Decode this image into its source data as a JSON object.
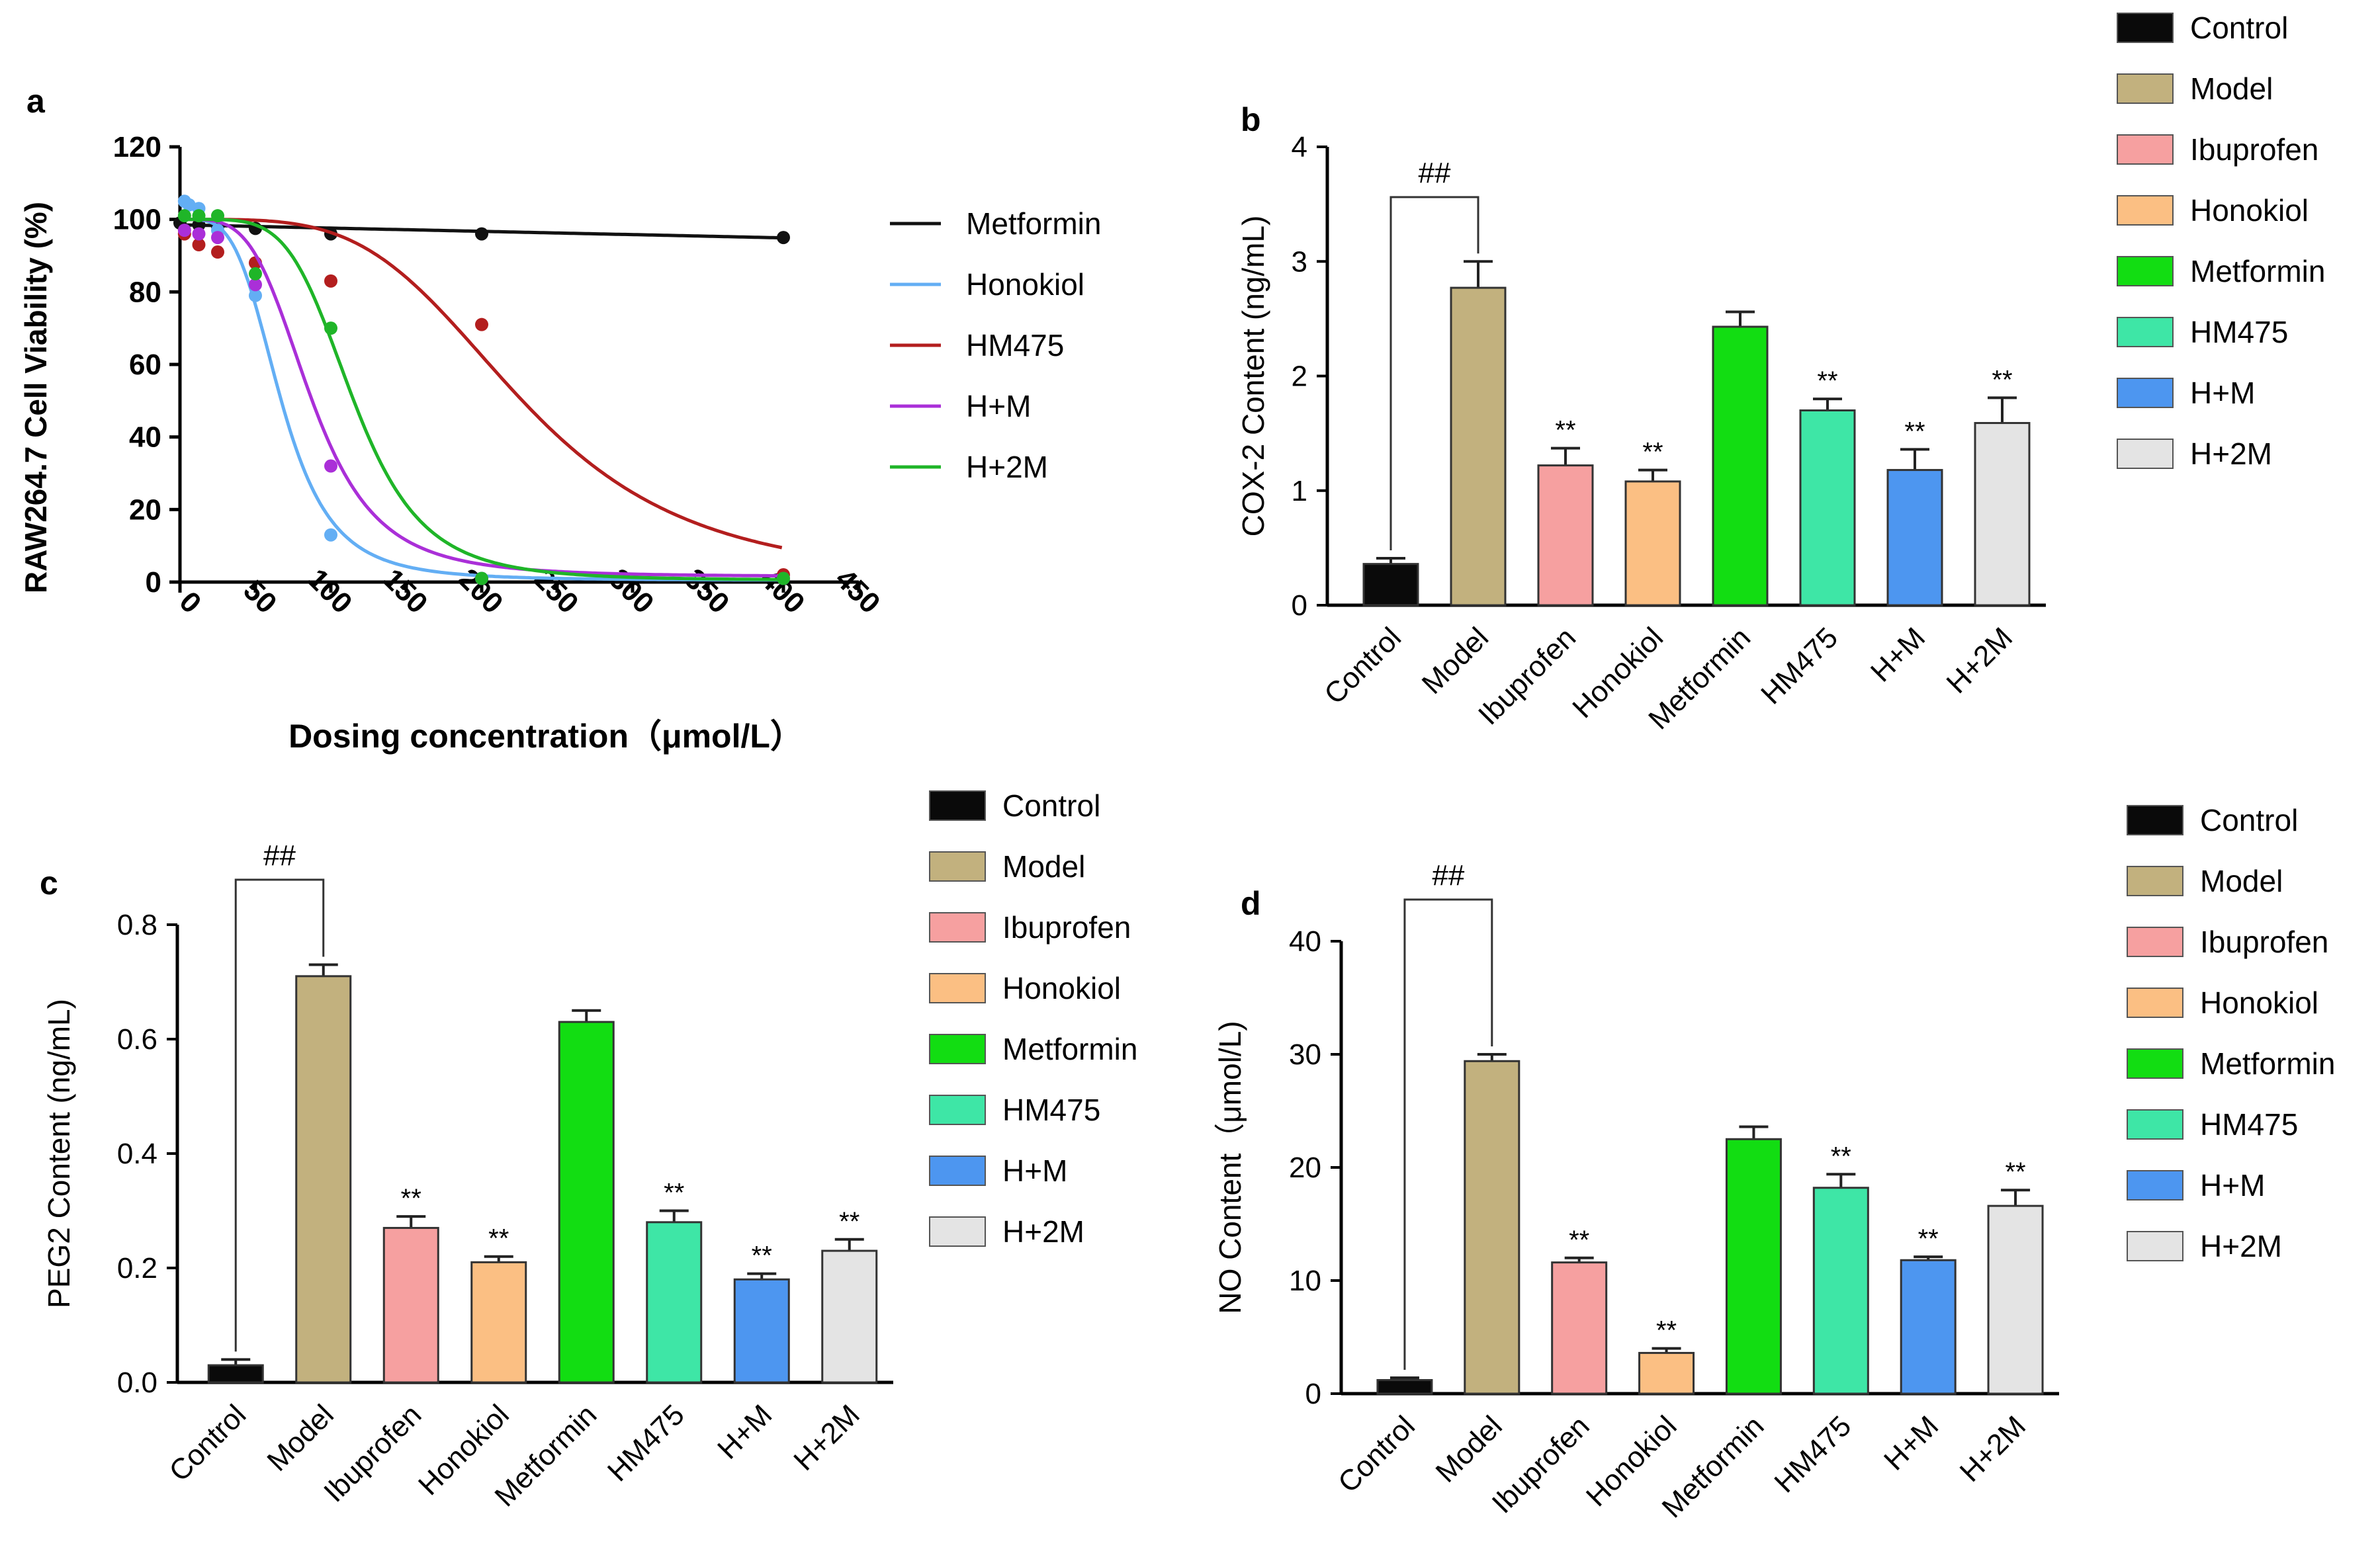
{
  "colors": {
    "Control": "#0a0a0a",
    "Model": "#c2b17e",
    "Ibuprofen": "#f6a0a0",
    "Honokiol": "#fbbf83",
    "Metformin": "#12dd12",
    "HM475": "#3ee6a6",
    "H+M": "#4d96f0",
    "H+2M": "#e4e4e4",
    "line_Metformin": "#111111",
    "line_Honokiol": "#63aef4",
    "line_HM475": "#b31e1e",
    "line_H+M": "#aa2fd8",
    "line_H+2M": "#1fb528"
  },
  "chart_data": [
    {
      "panel": "a",
      "type": "line",
      "title": "",
      "xlabel": "Dosing concentration（μmol/L）",
      "ylabel": "RAW264.7 Cell Viability (%)",
      "xlim": [
        0,
        450
      ],
      "ylim": [
        0,
        120
      ],
      "xticks": [
        "0",
        "50",
        "100",
        "150",
        "200",
        "250",
        "300",
        "350",
        "400",
        "450"
      ],
      "yticks": [
        "0",
        "20",
        "40",
        "60",
        "80",
        "100",
        "120"
      ],
      "legend": [
        "Metformin",
        "Honokiol",
        "HM475",
        "H+M",
        "H+2M"
      ],
      "series": [
        {
          "name": "Metformin",
          "x": [
            0,
            12.5,
            25,
            50,
            100,
            200,
            400
          ],
          "y": [
            99,
            98.5,
            98,
            97.5,
            96,
            96,
            95
          ],
          "curve": {
            "type": "linear",
            "y0": 98.5,
            "slope": -0.009
          }
        },
        {
          "name": "Honokiol",
          "x": [
            3,
            6,
            12.5,
            25,
            50,
            100,
            200,
            400
          ],
          "y": [
            105,
            104,
            103,
            97,
            79,
            13,
            1,
            1
          ],
          "curve": {
            "type": "hill",
            "top": 100,
            "bottom": 0.5,
            "ic50": 67,
            "n": 4
          }
        },
        {
          "name": "HM475",
          "x": [
            3,
            12.5,
            25,
            50,
            100,
            200,
            400
          ],
          "y": [
            96,
            93,
            91,
            88,
            83,
            71,
            2
          ],
          "curve": {
            "type": "hill",
            "top": 100,
            "bottom": 0,
            "ic50": 227,
            "n": 4
          }
        },
        {
          "name": "H+M",
          "x": [
            3,
            12.5,
            25,
            50,
            100,
            200,
            400
          ],
          "y": [
            97,
            96,
            95,
            82,
            32,
            1,
            1
          ],
          "curve": {
            "type": "hill",
            "top": 100,
            "bottom": 1.5,
            "ic50": 87,
            "n": 4
          }
        },
        {
          "name": "H+2M",
          "x": [
            3,
            12.5,
            25,
            50,
            100,
            200,
            400
          ],
          "y": [
            101,
            101,
            101,
            85,
            70,
            1,
            1
          ],
          "curve": {
            "type": "hill",
            "top": 100,
            "bottom": 0.5,
            "ic50": 115,
            "n": 5
          }
        }
      ]
    },
    {
      "panel": "b",
      "type": "bar",
      "ylabel": "COX-2 Content (ng/mL)",
      "ylim": [
        0,
        4
      ],
      "yticks": [
        "0",
        "1",
        "2",
        "3",
        "4"
      ],
      "categories": [
        "Control",
        "Model",
        "Ibuprofen",
        "Honokiol",
        "Metformin",
        "HM475",
        "H+M",
        "H+2M"
      ],
      "values": [
        0.36,
        2.77,
        1.22,
        1.08,
        2.43,
        1.7,
        1.18,
        1.59
      ],
      "errors": [
        0.05,
        0.23,
        0.15,
        0.1,
        0.13,
        0.1,
        0.18,
        0.22
      ],
      "annotations": [
        "",
        "",
        "**",
        "**",
        "",
        "**",
        "**",
        "**"
      ],
      "bracket": "##",
      "legend": [
        "Control",
        "Model",
        "Ibuprofen",
        "Honokiol",
        "Metformin",
        "HM475",
        "H+M",
        "H+2M"
      ]
    },
    {
      "panel": "c",
      "type": "bar",
      "ylabel": "PEG2 Content (ng/mL)",
      "ylim": [
        0,
        0.8
      ],
      "yticks": [
        "0.0",
        "0.2",
        "0.4",
        "0.6",
        "0.8"
      ],
      "categories": [
        "Control",
        "Model",
        "Ibuprofen",
        "Honokiol",
        "Metformin",
        "HM475",
        "H+M",
        "H+2M"
      ],
      "values": [
        0.03,
        0.71,
        0.27,
        0.21,
        0.63,
        0.28,
        0.18,
        0.23
      ],
      "errors": [
        0.01,
        0.02,
        0.02,
        0.01,
        0.02,
        0.02,
        0.01,
        0.02
      ],
      "annotations": [
        "",
        "",
        "**",
        "**",
        "",
        "**",
        "**",
        "**"
      ],
      "bracket": "##",
      "legend": [
        "Control",
        "Model",
        "Ibuprofen",
        "Honokiol",
        "Metformin",
        "HM475",
        "H+M",
        "H+2M"
      ]
    },
    {
      "panel": "d",
      "type": "bar",
      "ylabel": "NO Content（μmol/L)",
      "ylim": [
        0,
        40
      ],
      "yticks": [
        "0",
        "10",
        "20",
        "30",
        "40"
      ],
      "categories": [
        "Control",
        "Model",
        "Ibuprofen",
        "Honokiol",
        "Metformin",
        "HM475",
        "H+M",
        "H+2M"
      ],
      "values": [
        1.2,
        29.4,
        11.6,
        3.6,
        22.5,
        18.2,
        11.8,
        16.6
      ],
      "errors": [
        0.2,
        0.6,
        0.4,
        0.4,
        1.1,
        1.2,
        0.3,
        1.4
      ],
      "annotations": [
        "",
        "",
        "**",
        "**",
        "",
        "**",
        "**",
        "**"
      ],
      "bracket": "##",
      "legend": [
        "Control",
        "Model",
        "Ibuprofen",
        "Honokiol",
        "Metformin",
        "HM475",
        "H+M",
        "H+2M"
      ]
    }
  ]
}
